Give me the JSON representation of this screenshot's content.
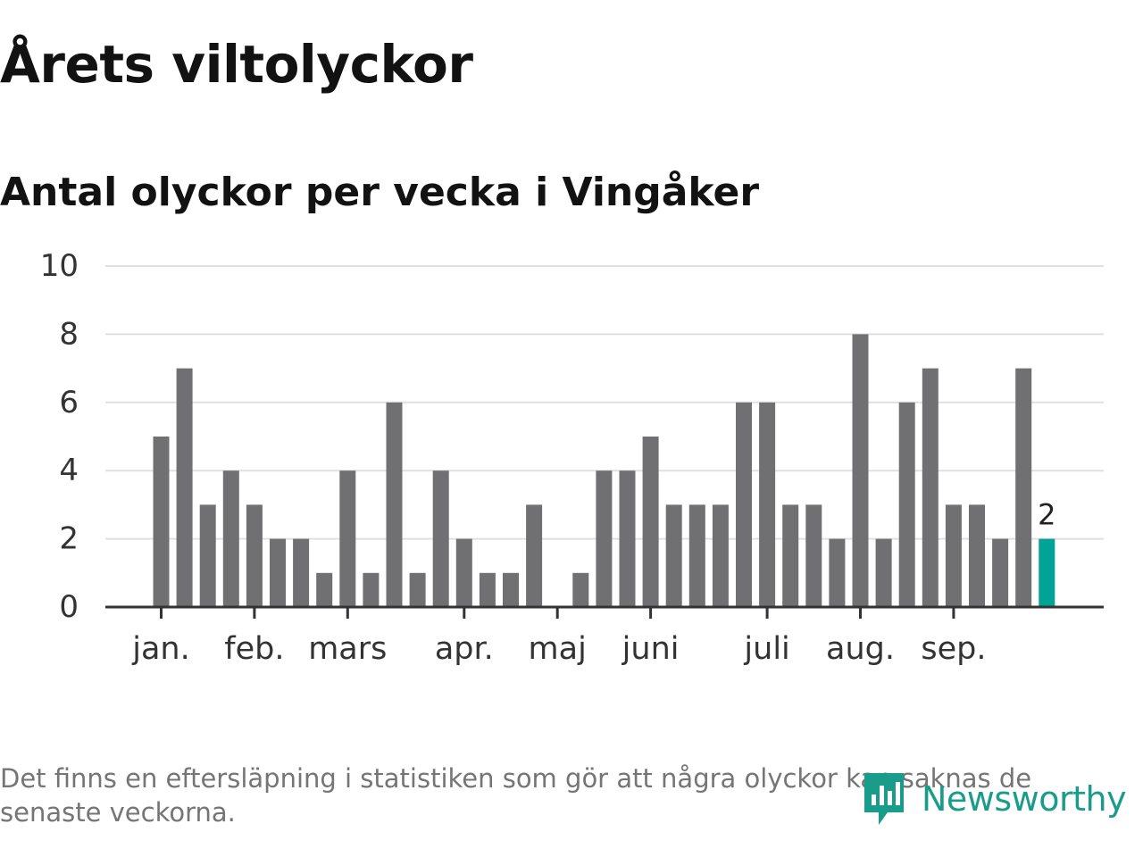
{
  "header": {
    "title": "Årets viltolyckor",
    "subtitle": "Antal olyckor per vecka i Vingåker"
  },
  "footer": {
    "note": "Det finns en eftersläpning i statistiken som gör att några olyckor kan saknas de senaste veckorna.",
    "brand": "Newsworthy"
  },
  "colors": {
    "bar": "#707073",
    "highlight": "#00a396",
    "grid": "#e0e0e0",
    "axis": "#333333",
    "brand": "#1a9c8b"
  },
  "chart_data": {
    "type": "bar",
    "title": "Antal olyckor per vecka i Vingåker",
    "xlabel": "",
    "ylabel": "",
    "ylim": [
      0,
      10
    ],
    "yticks": [
      0,
      2,
      4,
      6,
      8,
      10
    ],
    "grid": true,
    "weeks": [
      1,
      2,
      3,
      4,
      5,
      6,
      7,
      8,
      9,
      10,
      11,
      12,
      13,
      14,
      15,
      16,
      17,
      18,
      19,
      20,
      21,
      22,
      23,
      24,
      25,
      26,
      27,
      28,
      29,
      30,
      31,
      32,
      33,
      34,
      35,
      36,
      37,
      38,
      39
    ],
    "values": [
      5,
      7,
      3,
      4,
      3,
      2,
      2,
      1,
      4,
      1,
      6,
      1,
      4,
      2,
      1,
      1,
      3,
      0,
      1,
      4,
      4,
      5,
      3,
      3,
      3,
      6,
      6,
      3,
      3,
      2,
      8,
      2,
      6,
      7,
      3,
      3,
      2,
      7,
      2
    ],
    "highlight": {
      "week": 39,
      "value": 2,
      "label": "2"
    },
    "month_ticks": [
      {
        "label": "jan.",
        "week": 1
      },
      {
        "label": "feb.",
        "week": 5
      },
      {
        "label": "mars",
        "week": 9
      },
      {
        "label": "apr.",
        "week": 14
      },
      {
        "label": "maj",
        "week": 18
      },
      {
        "label": "juni",
        "week": 22
      },
      {
        "label": "juli",
        "week": 27
      },
      {
        "label": "aug.",
        "week": 31
      },
      {
        "label": "sep.",
        "week": 35
      }
    ]
  }
}
